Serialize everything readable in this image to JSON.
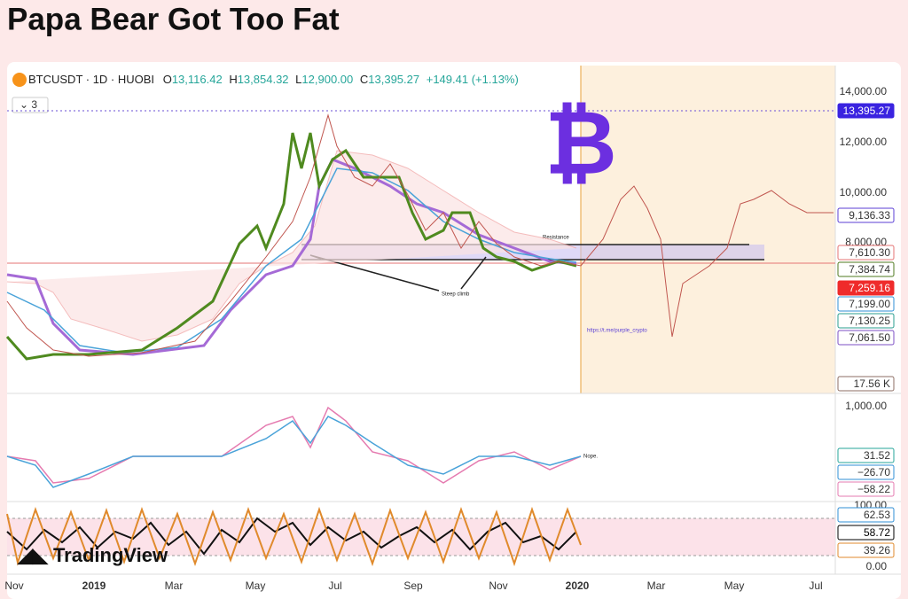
{
  "title": "Papa Bear Got Too Fat",
  "header": {
    "symbol": "BTCUSDT · 1D · HUOBI",
    "open_label": "O",
    "open": "13,116.42",
    "high_label": "H",
    "high": "13,854.32",
    "low_label": "L",
    "low": "12,900.00",
    "close_label": "C",
    "close": "13,395.27",
    "change": "+149.41 (+1.13%)"
  },
  "indicator_count": "3",
  "bitcoin_logo": "₿",
  "price_axis": {
    "ticks": [
      "14,000.00",
      "12,000.00",
      "10,000.00",
      "8,000.00"
    ],
    "tags": [
      {
        "label": "13,395.27",
        "color": "#3a23e0",
        "filled": true
      },
      {
        "label": "9,136.33",
        "color": "#5b3fd6",
        "filled": false
      },
      {
        "label": "7,610.30",
        "color": "#e57373",
        "filled": false
      },
      {
        "label": "7,384.74",
        "color": "#4f7a1f",
        "filled": false
      },
      {
        "label": "7,259.16",
        "color": "#ef2b2b",
        "filled": true
      },
      {
        "label": "7,199.00",
        "color": "#2f8fd6",
        "filled": false
      },
      {
        "label": "7,130.25",
        "color": "#2a9d8f",
        "filled": false
      },
      {
        "label": "7,061.50",
        "color": "#7c4fc4",
        "filled": false
      },
      {
        "label": "17.56 K",
        "color": "#8d6e63",
        "filled": false
      }
    ]
  },
  "annotations": {
    "resistance": "Resistance",
    "steep_climb": "Steep climb",
    "link": "https://t.me/purple_crypto",
    "nope": "Nope."
  },
  "macd_axis": {
    "ticks": [
      "1,000.00"
    ],
    "tags": [
      {
        "label": "31.52",
        "color": "#26a69a",
        "filled": false
      },
      {
        "label": "−26.70",
        "color": "#2f8fd6",
        "filled": false
      },
      {
        "label": "−58.22",
        "color": "#e57bb0",
        "filled": false
      }
    ]
  },
  "stoch_axis": {
    "ticks": [
      "100.00",
      "0.00"
    ],
    "tags": [
      {
        "label": "62.53",
        "color": "#2f8fd6",
        "filled": false
      },
      {
        "label": "58.72",
        "color": "#000000",
        "filled": false
      },
      {
        "label": "39.26",
        "color": "#e08a2c",
        "filled": false
      }
    ]
  },
  "time_axis": [
    "Nov",
    "2019",
    "Mar",
    "May",
    "Jul",
    "Sep",
    "Nov",
    "2020",
    "Mar",
    "May",
    "Jul"
  ],
  "watermark": "TradingView"
}
